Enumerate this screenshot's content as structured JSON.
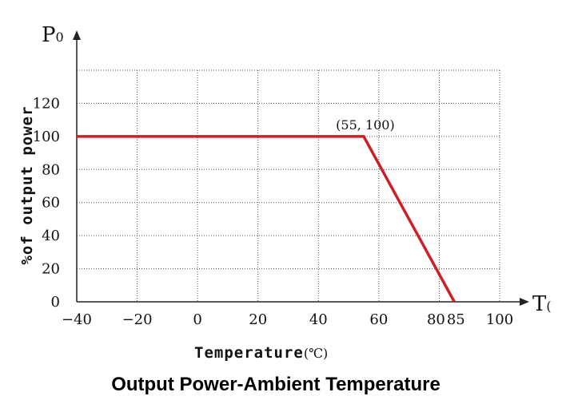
{
  "chart_data": {
    "type": "line",
    "title": "Output Power-Ambient Temperature",
    "y_axis_mark": "P",
    "y_axis_mark_sub": "0",
    "x_axis_mark": "T",
    "x_axis_mark_sub": "(",
    "xlabel": "Temperature",
    "xlabel_unit": "(℃)",
    "ylabel": "%of output power",
    "xlim": [
      -40,
      100
    ],
    "ylim": [
      0,
      120
    ],
    "grid": true,
    "x_ticks": [
      -40,
      -20,
      0,
      20,
      40,
      60,
      80,
      85,
      100
    ],
    "x_tick_labels": [
      "−40",
      "−20",
      "0",
      "20",
      "40",
      "60",
      "80",
      "85",
      "100"
    ],
    "y_ticks": [
      0,
      20,
      40,
      60,
      80,
      100,
      120
    ],
    "y_tick_labels": [
      "0",
      "20",
      "40",
      "60",
      "80",
      "100",
      "120"
    ],
    "series": [
      {
        "x": [
          -40,
          55,
          85
        ],
        "y": [
          100,
          100,
          0
        ],
        "color": "#cc2026"
      }
    ],
    "annotations": [
      {
        "text": "(55, 100)",
        "x": 55,
        "y": 100
      }
    ]
  }
}
